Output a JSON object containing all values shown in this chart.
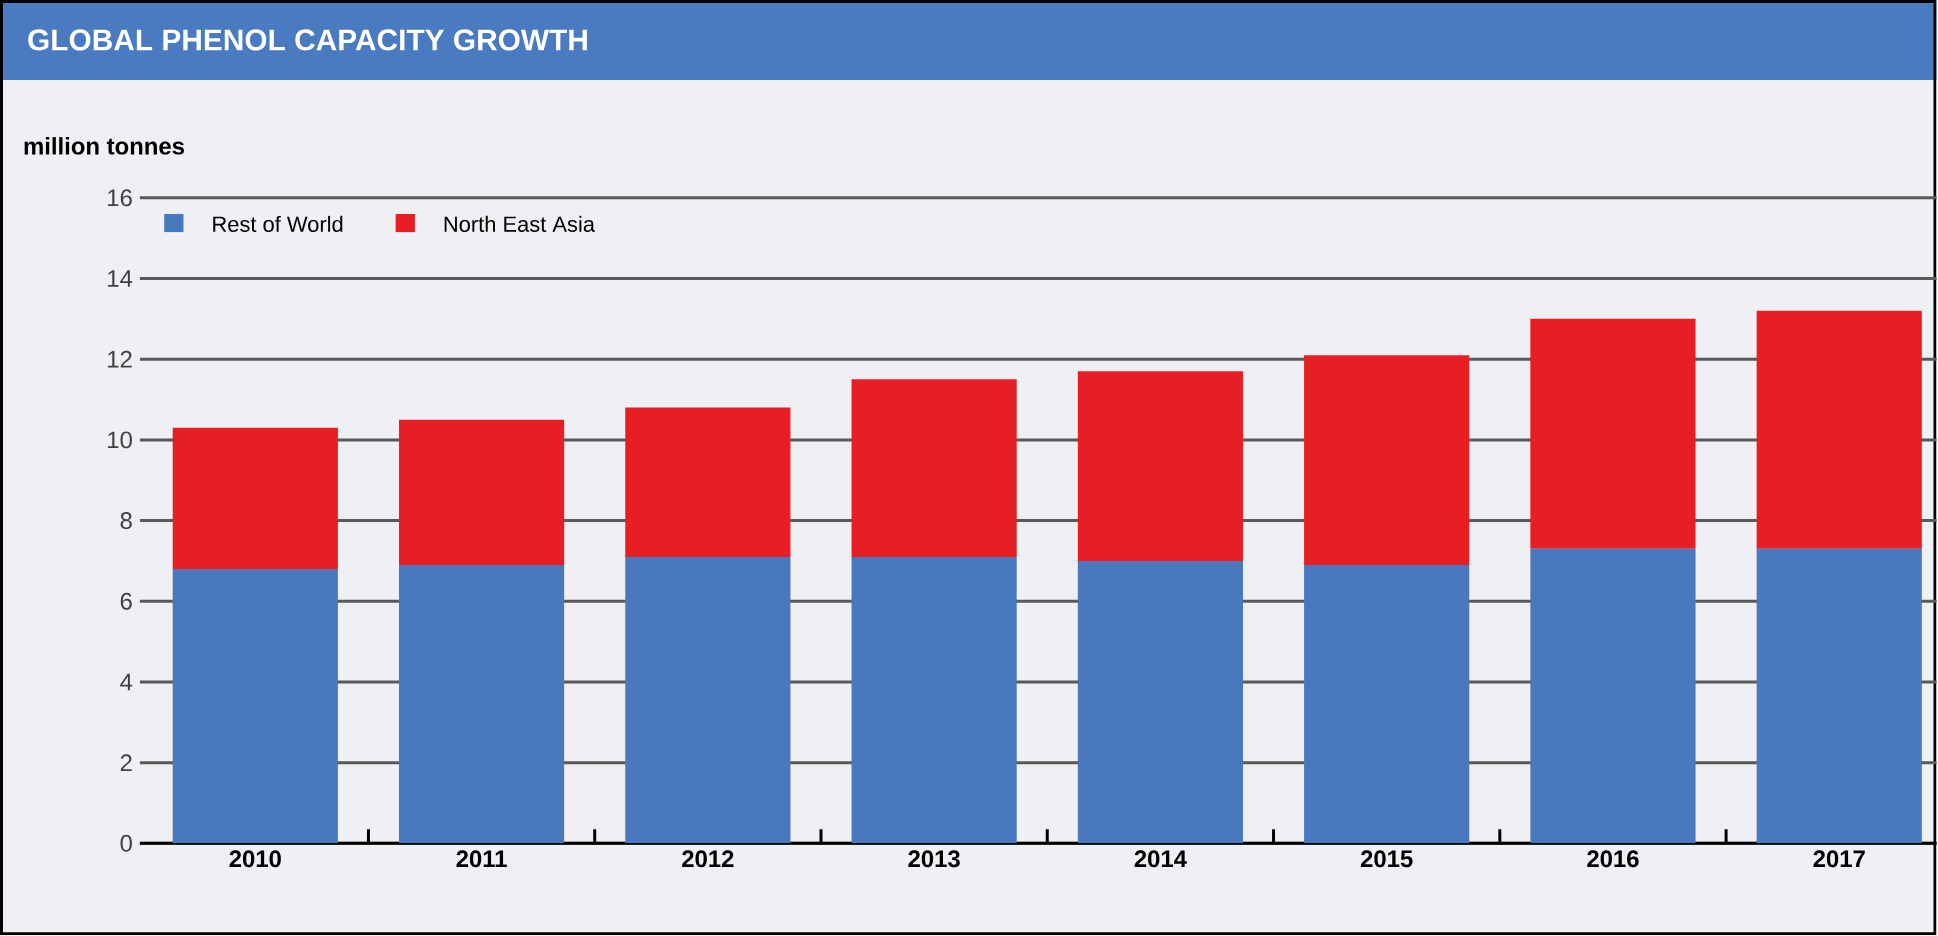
{
  "chart_data": {
    "type": "bar",
    "title": "GLOBAL PHENOL CAPACITY GROWTH",
    "ylabel": "million tonnes",
    "categories": [
      "2010",
      "2011",
      "2012",
      "2013",
      "2014",
      "2015",
      "2016",
      "2017"
    ],
    "series": [
      {
        "name": "Rest of World",
        "color": "#4a78bd",
        "values": [
          6.8,
          6.9,
          7.1,
          7.1,
          7.0,
          6.9,
          7.3,
          7.3
        ]
      },
      {
        "name": "North East Asia",
        "color": "#e81e25",
        "values": [
          3.5,
          3.6,
          3.7,
          4.4,
          4.7,
          5.2,
          5.7,
          5.9
        ]
      }
    ],
    "stacked": true,
    "ylim": [
      0,
      16
    ],
    "yticks": [
      0,
      2,
      4,
      6,
      8,
      10,
      12,
      14,
      16
    ],
    "grid": "y",
    "legend": "top left"
  }
}
